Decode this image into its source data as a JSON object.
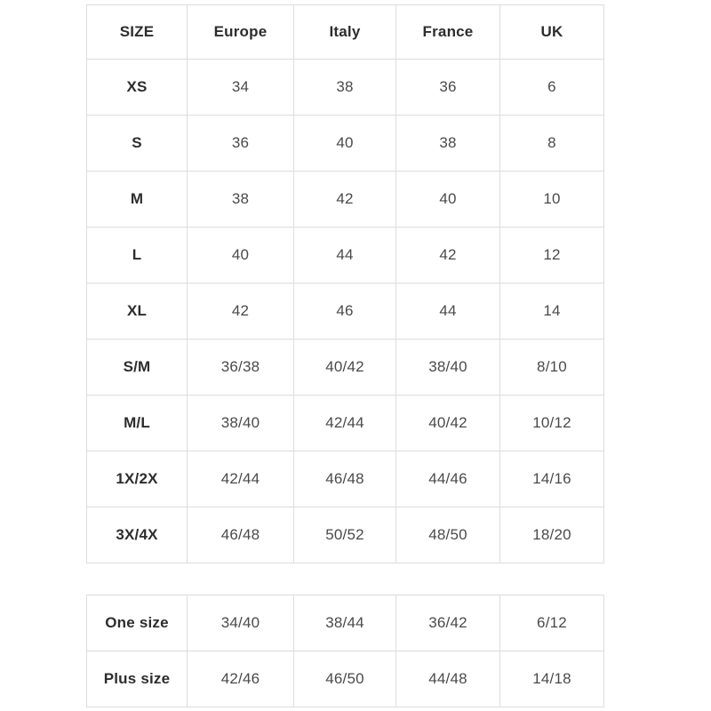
{
  "colors": {
    "background": "#ffffff",
    "border": "#dcdcdc",
    "header_text": "#2d2d2d",
    "cell_text": "#4a4a4a"
  },
  "main_table": {
    "headers": [
      "SIZE",
      "Europe",
      "Italy",
      "France",
      "UK"
    ],
    "rows": [
      {
        "label": "XS",
        "values": [
          "34",
          "38",
          "36",
          "6"
        ]
      },
      {
        "label": "S",
        "values": [
          "36",
          "40",
          "38",
          "8"
        ]
      },
      {
        "label": "M",
        "values": [
          "38",
          "42",
          "40",
          "10"
        ]
      },
      {
        "label": "L",
        "values": [
          "40",
          "44",
          "42",
          "12"
        ]
      },
      {
        "label": "XL",
        "values": [
          "42",
          "46",
          "44",
          "14"
        ]
      },
      {
        "label": "S/M",
        "values": [
          "36/38",
          "40/42",
          "38/40",
          "8/10"
        ]
      },
      {
        "label": "M/L",
        "values": [
          "38/40",
          "42/44",
          "40/42",
          "10/12"
        ]
      },
      {
        "label": "1X/2X",
        "values": [
          "42/44",
          "46/48",
          "44/46",
          "14/16"
        ]
      },
      {
        "label": "3X/4X",
        "values": [
          "46/48",
          "50/52",
          "48/50",
          "18/20"
        ]
      }
    ]
  },
  "extra_table": {
    "rows": [
      {
        "label": "One size",
        "values": [
          "34/40",
          "38/44",
          "36/42",
          "6/12"
        ]
      },
      {
        "label": "Plus size",
        "values": [
          "42/46",
          "46/50",
          "44/48",
          "14/18"
        ]
      }
    ]
  }
}
